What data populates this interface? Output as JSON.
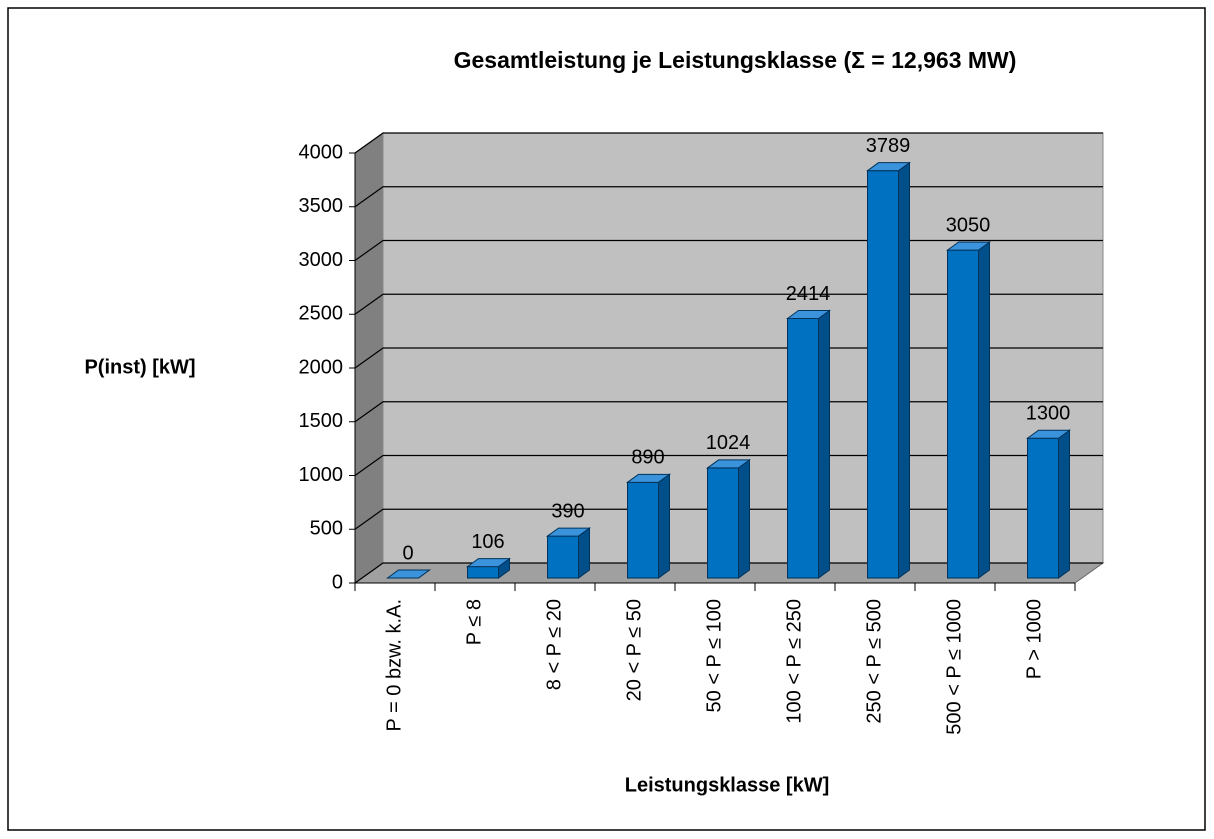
{
  "chart_data": {
    "type": "bar",
    "title": "Gesamtleistung je Leistungsklasse (Σ = 12,963 MW)",
    "x_label": "Leistungsklasse [kW]",
    "y_label": "P(inst) [kW]",
    "categories": [
      "P = 0 bzw. k.A.",
      "P ≤ 8",
      "8 < P ≤ 20",
      "20 < P ≤ 50",
      "50 < P ≤ 100",
      "100 < P ≤ 250",
      "250 < P ≤ 500",
      "500 < P ≤ 1000",
      "P > 1000"
    ],
    "values": [
      0,
      106,
      390,
      890,
      1024,
      2414,
      3789,
      3050,
      1300
    ],
    "color": "#0070c0",
    "ylim": [
      0,
      4000
    ],
    "yticks": [
      0,
      500,
      1000,
      1500,
      2000,
      2500,
      3000,
      3500,
      4000
    ],
    "grid": true
  }
}
